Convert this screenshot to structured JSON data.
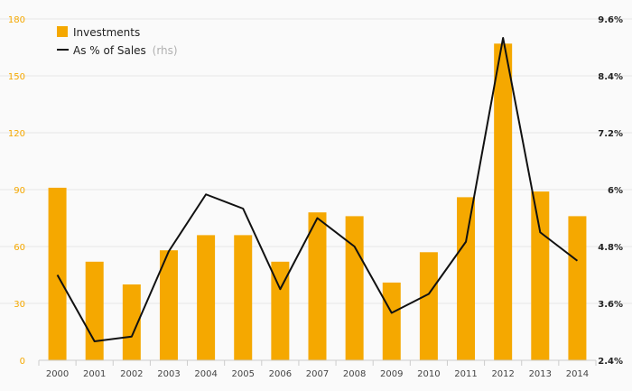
{
  "chart_data": {
    "type": "bar+line",
    "categories": [
      "2000",
      "2001",
      "2002",
      "2003",
      "2004",
      "2005",
      "2006",
      "2007",
      "2008",
      "2009",
      "2010",
      "2011",
      "2012",
      "2013",
      "2014"
    ],
    "series": [
      {
        "name": "Investments",
        "type": "bar",
        "axis": "left",
        "color": "#f5a800",
        "values": [
          91,
          52,
          40,
          58,
          66,
          66,
          52,
          78,
          76,
          41,
          57,
          86,
          167,
          89,
          76
        ]
      },
      {
        "name": "As % of Sales",
        "type": "line",
        "axis": "right",
        "color": "#111111",
        "values": [
          4.2,
          2.8,
          2.9,
          4.7,
          5.9,
          5.6,
          3.9,
          5.4,
          4.8,
          3.4,
          3.8,
          4.9,
          9.2,
          5.1,
          4.5
        ]
      }
    ],
    "legend": {
      "position": "top-left",
      "items": [
        {
          "label": "Investments",
          "suffix": ""
        },
        {
          "label": "As % of Sales",
          "suffix": "(rhs)"
        }
      ]
    },
    "y_left": {
      "ylim": [
        0,
        180
      ],
      "ticks": [
        "0",
        "30",
        "60",
        "90",
        "120",
        "150",
        "180"
      ],
      "color": "#f5a800"
    },
    "y_right": {
      "ylim": [
        2.4,
        9.6
      ],
      "ticks": [
        "2.4%",
        "3.6%",
        "4.8%",
        "6%",
        "7.2%",
        "8.4%",
        "9.6%"
      ],
      "color": "#222222"
    },
    "grid": true
  }
}
